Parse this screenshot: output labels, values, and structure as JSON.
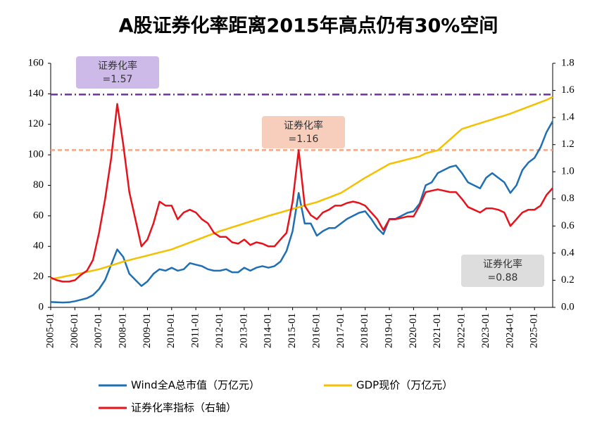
{
  "chart_data": {
    "type": "line",
    "title": "A股证券化率距离2015年高点仍有30%空间",
    "x": [
      "2005-01",
      "2005-04",
      "2005-07",
      "2005-10",
      "2006-01",
      "2006-04",
      "2006-07",
      "2006-10",
      "2007-01",
      "2007-04",
      "2007-07",
      "2007-10",
      "2008-01",
      "2008-04",
      "2008-07",
      "2008-10",
      "2009-01",
      "2009-04",
      "2009-07",
      "2009-10",
      "2010-01",
      "2010-04",
      "2010-07",
      "2010-10",
      "2011-01",
      "2011-04",
      "2011-07",
      "2011-10",
      "2012-01",
      "2012-04",
      "2012-07",
      "2012-10",
      "2013-01",
      "2013-04",
      "2013-07",
      "2013-10",
      "2014-01",
      "2014-04",
      "2014-07",
      "2014-10",
      "2015-01",
      "2015-04",
      "2015-07",
      "2015-10",
      "2016-01",
      "2016-04",
      "2016-07",
      "2016-10",
      "2017-01",
      "2017-04",
      "2017-07",
      "2017-10",
      "2018-01",
      "2018-04",
      "2018-07",
      "2018-10",
      "2019-01",
      "2019-04",
      "2019-07",
      "2019-10",
      "2020-01",
      "2020-04",
      "2020-07",
      "2020-10",
      "2021-01",
      "2021-04",
      "2021-07",
      "2021-10",
      "2022-01",
      "2022-04",
      "2022-07",
      "2022-10",
      "2023-01",
      "2023-04",
      "2023-07",
      "2023-10",
      "2024-01",
      "2024-04",
      "2024-07",
      "2024-10",
      "2025-01",
      "2025-04",
      "2025-07",
      "2025-10"
    ],
    "xlim": [
      "2005-01",
      "2025-10"
    ],
    "xticks": [
      "2005-01",
      "2006-01",
      "2007-01",
      "2008-01",
      "2009-01",
      "2010-01",
      "2011-01",
      "2012-01",
      "2013-01",
      "2014-01",
      "2015-01",
      "2016-01",
      "2017-01",
      "2018-01",
      "2019-01",
      "2020-01",
      "2021-01",
      "2022-01",
      "2023-01",
      "2024-01",
      "2025-01"
    ],
    "ylim": [
      0,
      160
    ],
    "yticks": [
      0,
      20,
      40,
      60,
      80,
      100,
      120,
      140,
      160
    ],
    "y2lim": [
      0,
      1.8
    ],
    "y2ticks": [
      {
        "value": 0,
        "label": "0.0"
      },
      0.2,
      0.4,
      0.6,
      0.8,
      {
        "value": 1,
        "label": "1.0"
      },
      1.2,
      1.4,
      1.6,
      1.8
    ],
    "series": [
      {
        "name": "Wind全A总市值（万亿元）",
        "color": "#1f6fb5",
        "values": [
          3.5,
          3.3,
          3.2,
          3.3,
          4,
          5,
          6,
          8,
          12,
          18,
          28,
          38,
          33,
          22,
          18,
          14,
          17,
          22,
          25,
          24,
          26,
          24,
          25,
          29,
          28,
          27,
          25,
          24,
          24,
          25,
          23,
          23,
          26,
          24,
          26,
          27,
          26,
          27,
          30,
          37,
          50,
          75,
          55,
          55,
          47,
          50,
          52,
          52,
          55,
          58,
          60,
          62,
          63,
          58,
          52,
          48,
          58,
          58,
          60,
          62,
          63,
          68,
          80,
          82,
          88,
          90,
          92,
          93,
          88,
          82,
          80,
          78,
          85,
          88,
          85,
          82,
          75,
          80,
          90,
          95,
          98,
          105,
          115,
          122
        ]
      },
      {
        "name": "GDP现价（万亿元）",
        "color": "#f5c000",
        "values": [
          18.5,
          19.2,
          20,
          20.8,
          21.5,
          22.4,
          23.2,
          24.1,
          25,
          26.2,
          27.5,
          28.7,
          30,
          31,
          32,
          33,
          34,
          35,
          36,
          37,
          38,
          39.5,
          41,
          42.5,
          44,
          45.5,
          47,
          48.5,
          50,
          51.2,
          52.5,
          53.7,
          55,
          56.2,
          57.5,
          58.7,
          60,
          61.1,
          62.2,
          63.4,
          64.5,
          65.6,
          66.8,
          67.9,
          69,
          70.5,
          72,
          73.5,
          75,
          77.5,
          80,
          82.5,
          85,
          87.2,
          89.5,
          91.7,
          94,
          95,
          96,
          97,
          98,
          99,
          101,
          102,
          103,
          106.5,
          110,
          113.5,
          117,
          118.2,
          119.5,
          120.7,
          122,
          123.2,
          124.5,
          125.7,
          127,
          128.5,
          130,
          131.5,
          133,
          134.5,
          136,
          138
        ]
      },
      {
        "name": "证券化率指标（右轴）",
        "color": "#e8121b",
        "axis": "y2",
        "values": [
          0.22,
          0.2,
          0.19,
          0.19,
          0.2,
          0.24,
          0.27,
          0.35,
          0.55,
          0.8,
          1.1,
          1.5,
          1.2,
          0.85,
          0.65,
          0.45,
          0.5,
          0.62,
          0.78,
          0.75,
          0.75,
          0.65,
          0.7,
          0.72,
          0.7,
          0.65,
          0.62,
          0.55,
          0.52,
          0.52,
          0.48,
          0.47,
          0.5,
          0.46,
          0.48,
          0.47,
          0.45,
          0.45,
          0.5,
          0.55,
          0.78,
          1.16,
          0.75,
          0.68,
          0.65,
          0.7,
          0.72,
          0.75,
          0.75,
          0.77,
          0.78,
          0.77,
          0.75,
          0.7,
          0.65,
          0.57,
          0.65,
          0.65,
          0.66,
          0.67,
          0.67,
          0.75,
          0.85,
          0.86,
          0.87,
          0.86,
          0.85,
          0.85,
          0.8,
          0.74,
          0.72,
          0.7,
          0.73,
          0.73,
          0.72,
          0.7,
          0.6,
          0.65,
          0.7,
          0.72,
          0.72,
          0.75,
          0.83,
          0.88
        ]
      }
    ],
    "annotations": [
      {
        "text": "证券化率",
        "value": 1.57,
        "value_label": "=1.57",
        "color": "#c9b3e6",
        "line_color": "#7030a0"
      },
      {
        "text": "证券化率",
        "value": 1.16,
        "value_label": "=1.16",
        "color": "#f6c9b4",
        "line_color": "#f4a582"
      },
      {
        "text": "证券化率",
        "value": 0.88,
        "value_label": "=0.88",
        "color": "#d9d9d9"
      }
    ]
  }
}
